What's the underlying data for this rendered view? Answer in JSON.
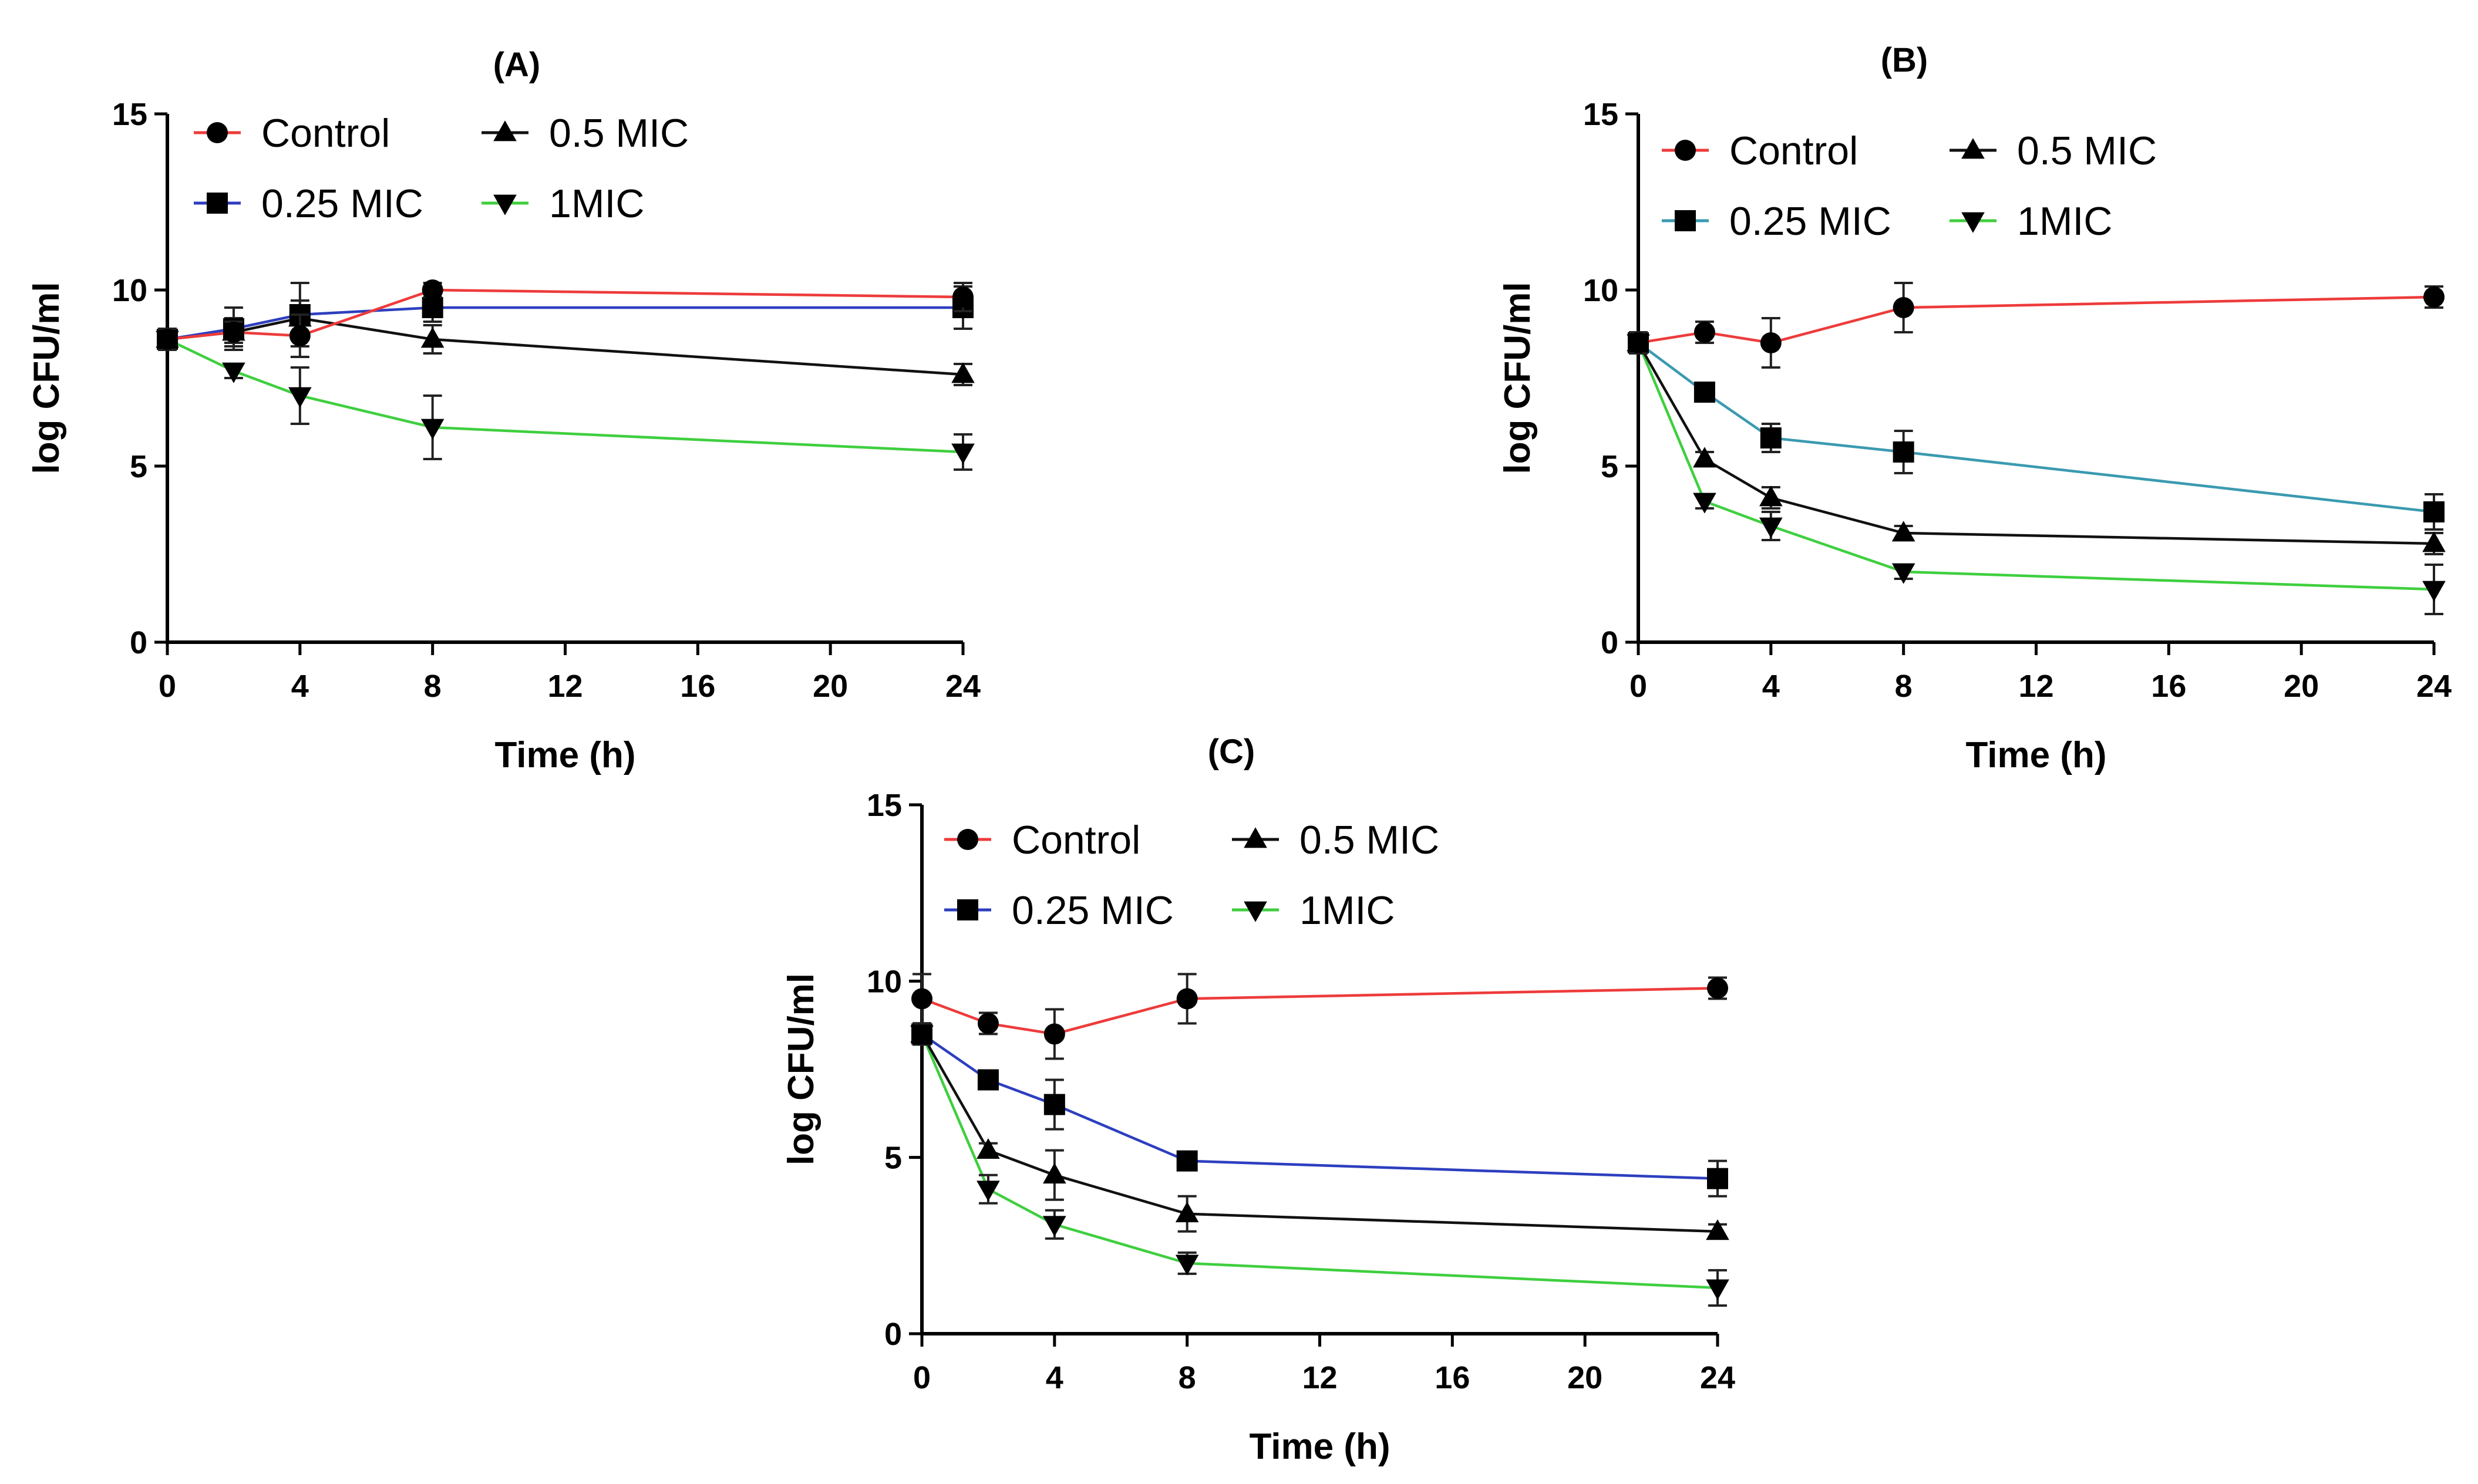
{
  "chart_data": [
    {
      "type": "line",
      "title": "(A)",
      "xlabel": "Time (h)",
      "ylabel": "log CFU/ml",
      "xlim": [
        0,
        24
      ],
      "ylim": [
        0,
        15
      ],
      "xticks": [
        "0",
        "4",
        "8",
        "12",
        "16",
        "20",
        "24"
      ],
      "yticks": [
        "0",
        "5",
        "10",
        "15"
      ],
      "x": [
        0,
        2,
        4,
        8,
        24
      ],
      "legend": "top-left",
      "series": [
        {
          "name": "Control",
          "marker": "circle",
          "color": "#ee3b3b",
          "values": [
            8.6,
            8.8,
            8.7,
            10.0,
            9.8
          ],
          "errors": [
            0.3,
            0.3,
            0.6,
            0.2,
            0.4
          ]
        },
        {
          "name": "0.5 MIC",
          "marker": "triangle-up",
          "color": "#111111",
          "values": [
            8.6,
            8.8,
            9.2,
            8.6,
            7.6
          ],
          "errors": [
            0.3,
            0.4,
            0.5,
            0.4,
            0.3
          ]
        },
        {
          "name": "0.25 MIC",
          "marker": "square",
          "color": "#2d3fbf",
          "values": [
            8.6,
            8.9,
            9.3,
            9.5,
            9.5
          ],
          "errors": [
            0.3,
            0.6,
            0.9,
            0.4,
            0.6
          ]
        },
        {
          "name": "1MIC",
          "marker": "triangle-down",
          "color": "#3fcf3f",
          "values": [
            8.6,
            7.7,
            7.0,
            6.1,
            5.4
          ],
          "errors": [
            0.3,
            0.2,
            0.8,
            0.9,
            0.5
          ]
        }
      ]
    },
    {
      "type": "line",
      "title": "(B)",
      "xlabel": "Time (h)",
      "ylabel": "log CFU/ml",
      "xlim": [
        0,
        24
      ],
      "ylim": [
        0,
        15
      ],
      "xticks": [
        "0",
        "4",
        "8",
        "12",
        "16",
        "20",
        "24"
      ],
      "yticks": [
        "0",
        "5",
        "10",
        "15"
      ],
      "x": [
        0,
        2,
        4,
        8,
        24
      ],
      "legend": "top-left",
      "series": [
        {
          "name": "Control",
          "marker": "circle",
          "color": "#ee3b3b",
          "values": [
            8.5,
            8.8,
            8.5,
            9.5,
            9.8
          ],
          "errors": [
            0.3,
            0.3,
            0.7,
            0.7,
            0.3
          ]
        },
        {
          "name": "0.5 MIC",
          "marker": "triangle-up",
          "color": "#111111",
          "values": [
            8.5,
            5.2,
            4.1,
            3.1,
            2.8
          ],
          "errors": [
            0.3,
            0.2,
            0.3,
            0.2,
            0.3
          ]
        },
        {
          "name": "0.25 MIC",
          "marker": "square",
          "color": "#3a9ab0",
          "values": [
            8.5,
            7.1,
            5.8,
            5.4,
            3.7
          ],
          "errors": [
            0.3,
            0.2,
            0.4,
            0.6,
            0.5
          ]
        },
        {
          "name": "1MIC",
          "marker": "triangle-down",
          "color": "#3fcf3f",
          "values": [
            8.5,
            4.0,
            3.3,
            2.0,
            1.5
          ],
          "errors": [
            0.3,
            0.2,
            0.4,
            0.2,
            0.7
          ]
        }
      ]
    },
    {
      "type": "line",
      "title": "(C)",
      "xlabel": "Time (h)",
      "ylabel": "log CFU/ml",
      "xlim": [
        0,
        24
      ],
      "ylim": [
        0,
        15
      ],
      "xticks": [
        "0",
        "4",
        "8",
        "12",
        "16",
        "20",
        "24"
      ],
      "yticks": [
        "0",
        "5",
        "10",
        "15"
      ],
      "x": [
        0,
        2,
        4,
        8,
        24
      ],
      "legend": "top-left",
      "series": [
        {
          "name": "Control",
          "marker": "circle",
          "color": "#ee3b3b",
          "values": [
            9.5,
            8.8,
            8.5,
            9.5,
            9.8
          ],
          "errors": [
            0.7,
            0.3,
            0.7,
            0.7,
            0.3
          ]
        },
        {
          "name": "0.5 MIC",
          "marker": "triangle-up",
          "color": "#111111",
          "values": [
            8.5,
            5.2,
            4.5,
            3.4,
            2.9
          ],
          "errors": [
            0.3,
            0.2,
            0.7,
            0.5,
            0.2
          ]
        },
        {
          "name": "0.25 MIC",
          "marker": "square",
          "color": "#2d3fbf",
          "values": [
            8.5,
            7.2,
            6.5,
            4.9,
            4.4
          ],
          "errors": [
            0.3,
            0.2,
            0.7,
            0.2,
            0.5
          ]
        },
        {
          "name": "1MIC",
          "marker": "triangle-down",
          "color": "#3fcf3f",
          "values": [
            8.5,
            4.1,
            3.1,
            2.0,
            1.3
          ],
          "errors": [
            0.3,
            0.4,
            0.4,
            0.3,
            0.5
          ]
        }
      ]
    }
  ]
}
